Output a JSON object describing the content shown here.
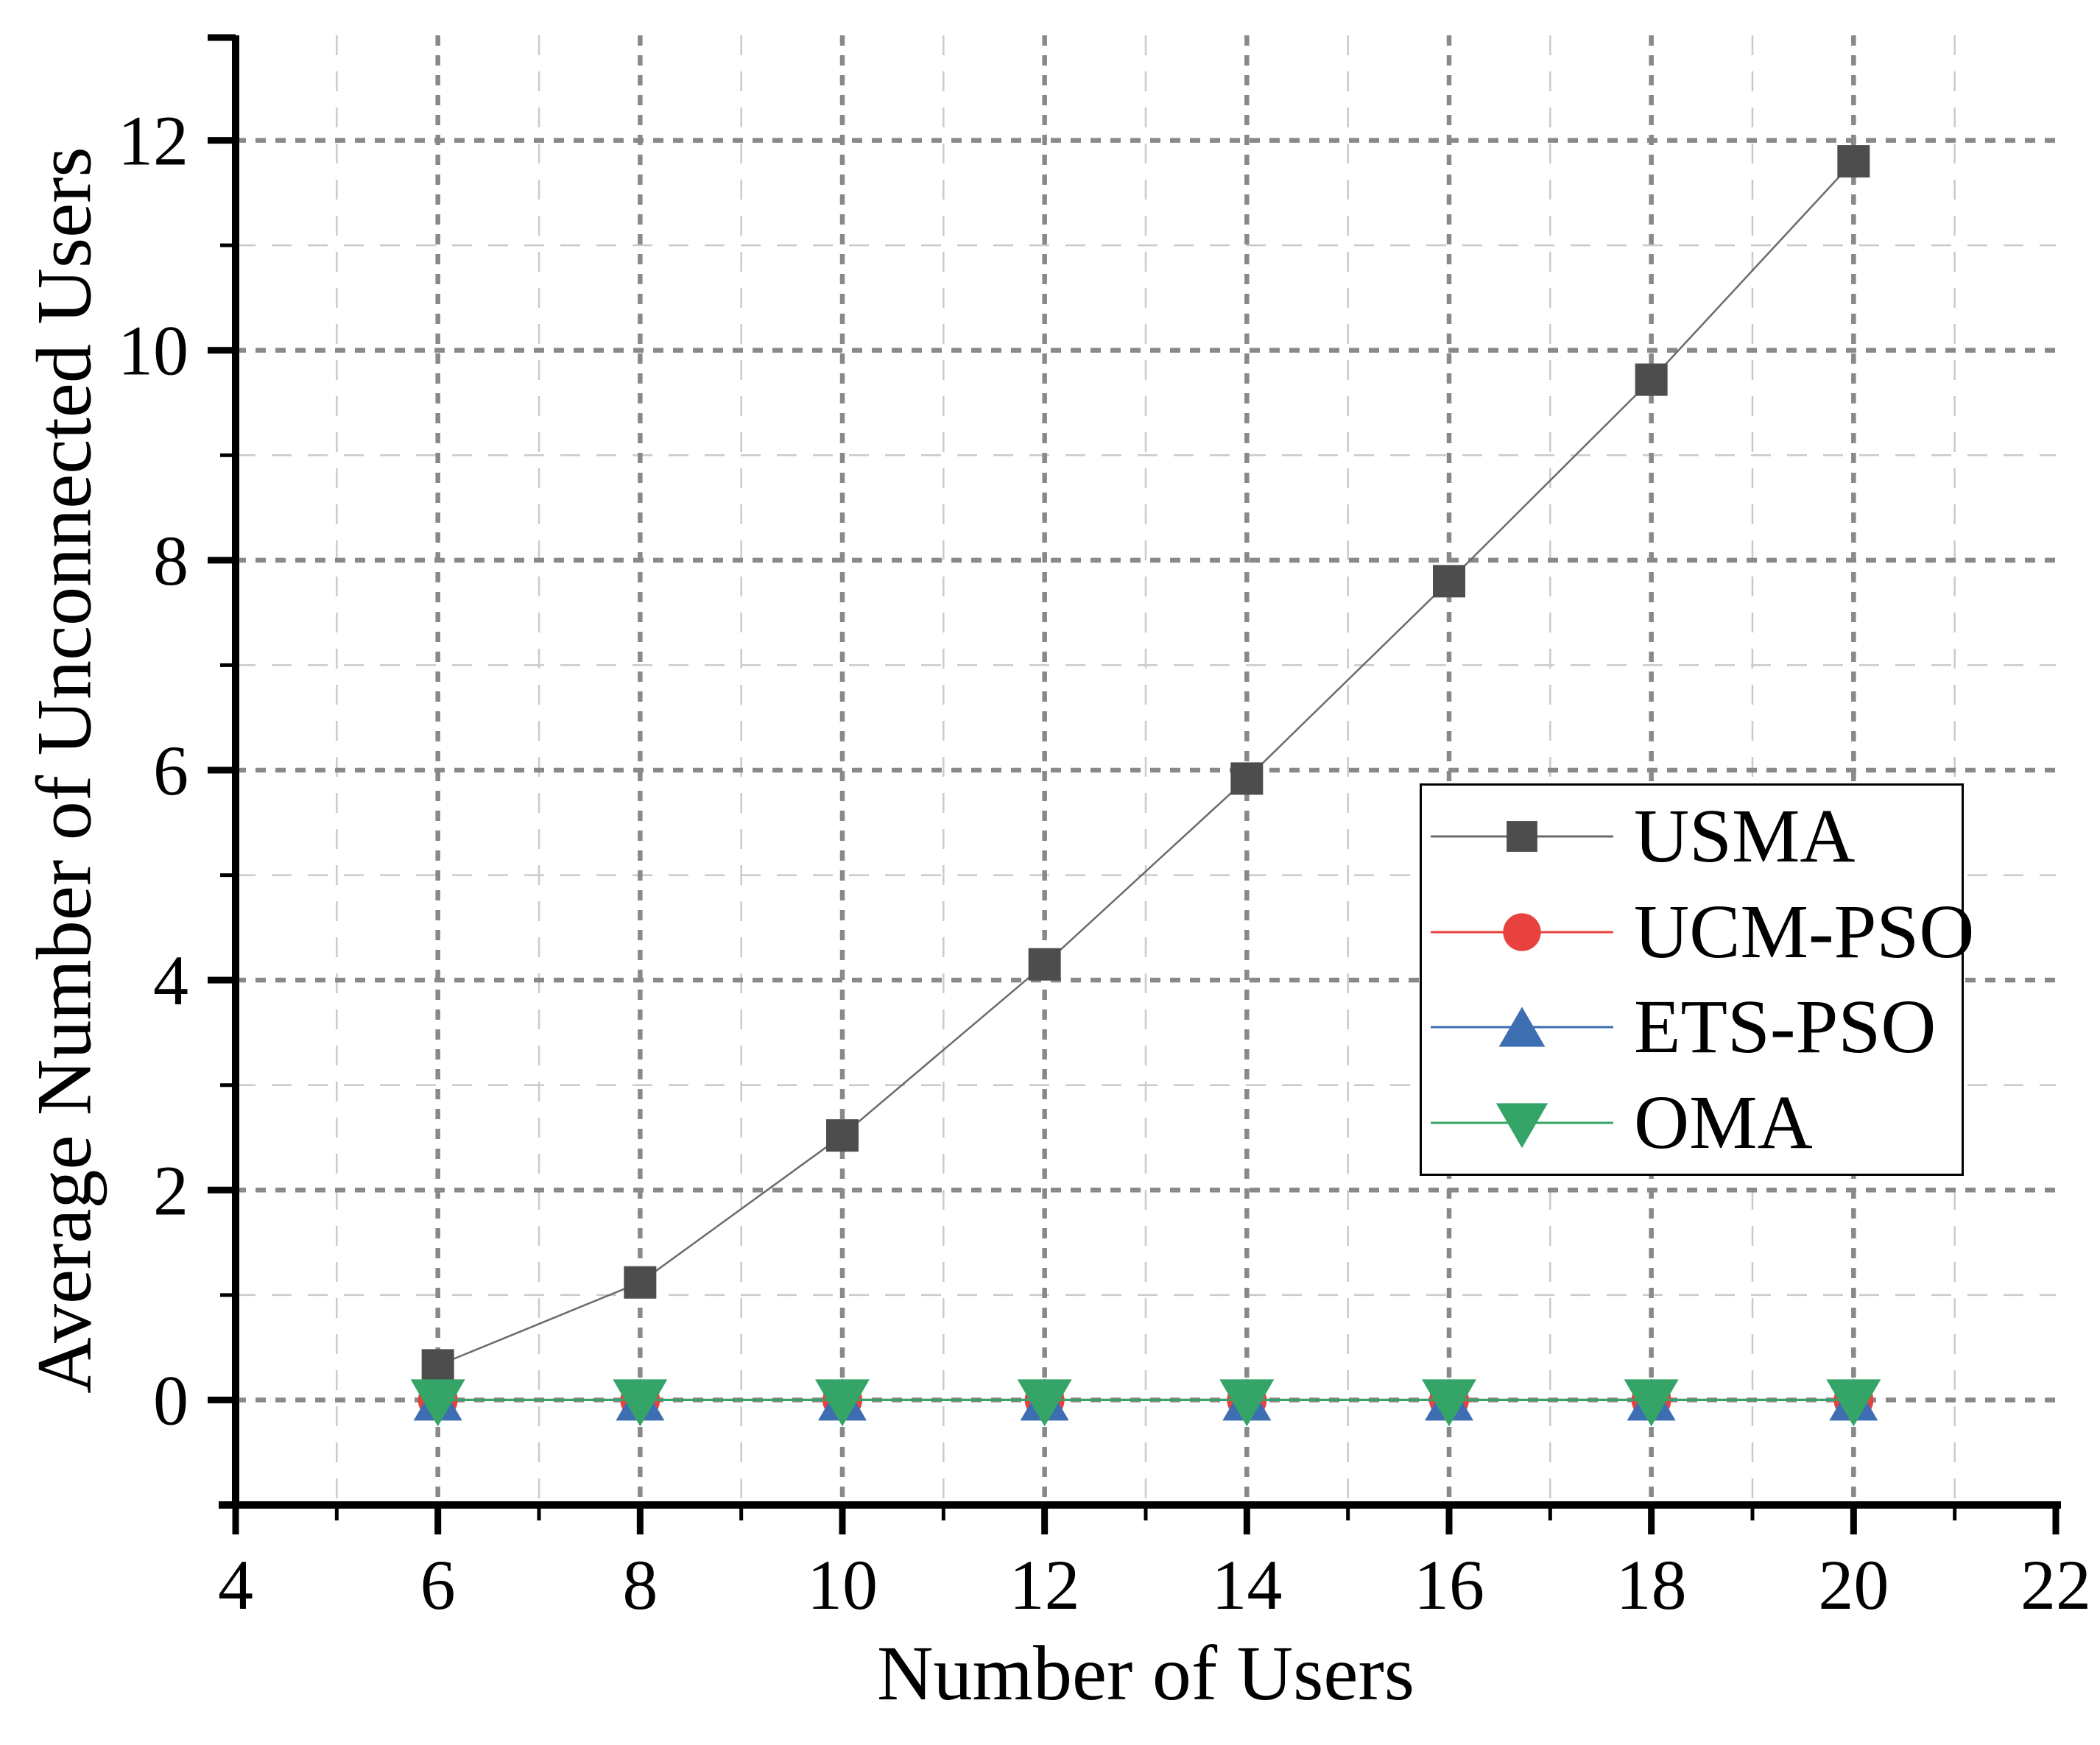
{
  "figure": {
    "background": "#ffffff"
  },
  "chart_data": {
    "type": "line",
    "title": "",
    "xlabel": "Number of Users",
    "ylabel": "Average Number of Unconnected Users",
    "x": [
      6,
      8,
      10,
      12,
      14,
      16,
      18,
      20
    ],
    "series": [
      {
        "name": "USMA",
        "marker": "square",
        "color": "#4d4d4d",
        "line_color": "#6b6b6b",
        "values": [
          0.33,
          1.12,
          2.52,
          4.15,
          5.92,
          7.8,
          9.72,
          11.8
        ]
      },
      {
        "name": "UCM-PSO",
        "marker": "circle",
        "color": "#e8423e",
        "line_color": "#e8423e",
        "values": [
          0,
          0,
          0,
          0,
          0,
          0,
          0,
          0
        ]
      },
      {
        "name": "ETS-PSO",
        "marker": "triangle-up",
        "color": "#3d6eb2",
        "line_color": "#3d6eb2",
        "values": [
          0,
          0,
          0,
          0,
          0,
          0,
          0,
          0
        ]
      },
      {
        "name": "OMA",
        "marker": "triangle-down",
        "color": "#34a567",
        "line_color": "#34a567",
        "values": [
          0,
          0,
          0,
          0,
          0,
          0,
          0,
          0
        ]
      }
    ],
    "x_axis": {
      "range": [
        4,
        22
      ],
      "major_ticks": [
        4,
        6,
        8,
        10,
        12,
        14,
        16,
        18,
        20,
        22
      ],
      "minor_ticks": [
        5,
        7,
        9,
        11,
        13,
        15,
        17,
        19,
        21
      ]
    },
    "y_axis": {
      "range": [
        -1,
        13
      ],
      "major_ticks": [
        0,
        2,
        4,
        6,
        8,
        10,
        12
      ],
      "minor_ticks": [
        1,
        3,
        5,
        7,
        9,
        11
      ]
    },
    "grid": {
      "major_color": "#898989",
      "minor_color": "#cacaca",
      "major_on": true,
      "minor_on": true
    },
    "axis_color": "#000000",
    "legend": {
      "position": "inside-right",
      "entries": [
        "USMA",
        "UCM-PSO",
        "ETS-PSO",
        "OMA"
      ]
    }
  }
}
